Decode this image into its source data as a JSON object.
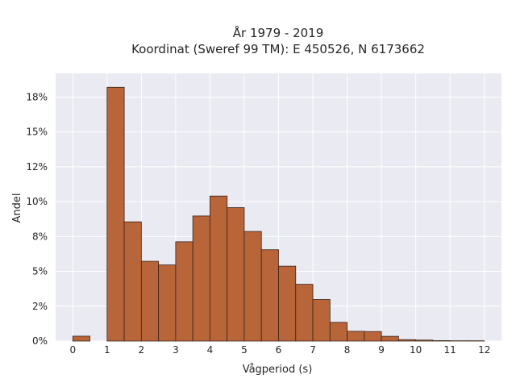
{
  "chart_data": {
    "type": "bar",
    "title": "År 1979 - 2019",
    "subtitle": "Koordinat (Sweref 99 TM): E 450526, N 6173662",
    "xlabel": "Vågperiod (s)",
    "ylabel": "Andel",
    "bin_width": 0.5,
    "bins": [
      {
        "x": 0.0,
        "value": 0.35
      },
      {
        "x": 1.0,
        "value": 18.2
      },
      {
        "x": 1.5,
        "value": 8.55
      },
      {
        "x": 2.0,
        "value": 5.72
      },
      {
        "x": 2.5,
        "value": 5.46
      },
      {
        "x": 3.0,
        "value": 7.12
      },
      {
        "x": 3.5,
        "value": 8.97
      },
      {
        "x": 4.0,
        "value": 10.4
      },
      {
        "x": 4.5,
        "value": 9.57
      },
      {
        "x": 5.0,
        "value": 7.86
      },
      {
        "x": 5.5,
        "value": 6.55
      },
      {
        "x": 6.0,
        "value": 5.37
      },
      {
        "x": 6.5,
        "value": 4.07
      },
      {
        "x": 7.0,
        "value": 2.98
      },
      {
        "x": 7.5,
        "value": 1.34
      },
      {
        "x": 8.0,
        "value": 0.7
      },
      {
        "x": 8.5,
        "value": 0.68
      },
      {
        "x": 9.0,
        "value": 0.34
      },
      {
        "x": 9.5,
        "value": 0.1
      },
      {
        "x": 10.0,
        "value": 0.07
      },
      {
        "x": 10.5,
        "value": 0.03
      },
      {
        "x": 11.0,
        "value": 0.02
      },
      {
        "x": 11.5,
        "value": 0.02
      }
    ],
    "xlim": [
      -0.5,
      12.5
    ],
    "ylim": [
      0,
      19.2
    ],
    "xticks": [
      {
        "value": 0,
        "label": "0"
      },
      {
        "value": 1,
        "label": "1"
      },
      {
        "value": 2,
        "label": "2"
      },
      {
        "value": 3,
        "label": "3"
      },
      {
        "value": 4,
        "label": "4"
      },
      {
        "value": 5,
        "label": "5"
      },
      {
        "value": 6,
        "label": "6"
      },
      {
        "value": 7,
        "label": "7"
      },
      {
        "value": 8,
        "label": "8"
      },
      {
        "value": 9,
        "label": "9"
      },
      {
        "value": 10,
        "label": "10"
      },
      {
        "value": 11,
        "label": "11"
      },
      {
        "value": 12,
        "label": "12"
      }
    ],
    "yticks": [
      {
        "value": 0,
        "label": "0%"
      },
      {
        "value": 2.5,
        "label": "2%"
      },
      {
        "value": 5,
        "label": "5%"
      },
      {
        "value": 7.5,
        "label": "8%"
      },
      {
        "value": 10,
        "label": "10%"
      },
      {
        "value": 12.5,
        "label": "12%"
      },
      {
        "value": 15,
        "label": "15%"
      },
      {
        "value": 17.5,
        "label": "18%"
      }
    ],
    "grid": true,
    "colors": {
      "bar": "#b8653a",
      "bar_edge": "#3a2418",
      "background": "#eaeaf2",
      "grid": "#ffffff"
    }
  }
}
